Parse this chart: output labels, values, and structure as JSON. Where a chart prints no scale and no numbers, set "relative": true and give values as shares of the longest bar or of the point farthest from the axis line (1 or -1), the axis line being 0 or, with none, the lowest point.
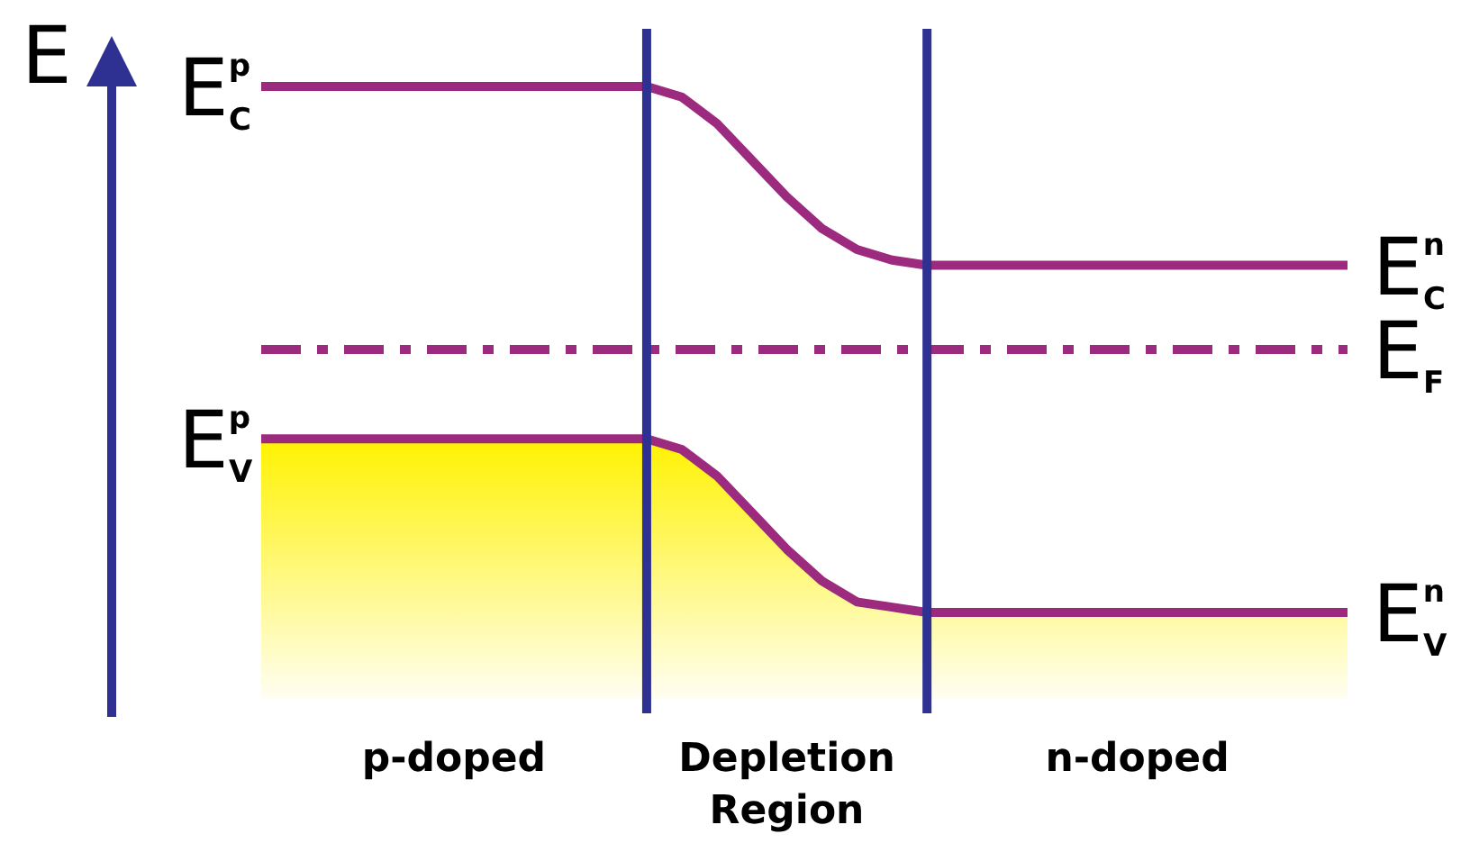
{
  "chart_data": {
    "type": "line",
    "ylabel": "E",
    "relative": true,
    "categories": [
      null,
      null,
      null,
      null,
      null,
      null,
      null,
      null,
      null,
      null,
      null,
      null,
      null,
      null,
      null,
      null,
      null,
      null,
      null,
      null,
      null,
      null,
      null,
      null,
      null,
      null,
      null,
      null,
      null,
      null,
      null,
      null
    ],
    "series": [
      {
        "name": "E$^{n}$$_{C}$",
        "color": "#9c2a7e",
        "values": [
          1,
          1,
          1,
          1,
          1,
          1,
          1,
          1,
          1,
          1,
          1,
          1,
          0.98,
          0.93,
          0.86,
          0.79,
          0.73,
          0.69,
          0.67,
          0.66,
          0.66,
          0.66,
          0.66,
          0.66,
          0.66,
          0.66,
          0.66,
          0.66,
          0.66,
          0.66,
          0.66,
          0.66
        ]
      },
      {
        "name": "E$_{F}$",
        "color": "#9c2a7e",
        "line_style": "dashed",
        "values": [
          0.5,
          0.5,
          0.5,
          0.5,
          0.5,
          0.5,
          0.5,
          0.5,
          0.5,
          0.5,
          0.5,
          0.5,
          0.5,
          0.5,
          0.5,
          0.5,
          0.5,
          0.5,
          0.5,
          0.5,
          0.5,
          0.5,
          0.5,
          0.5,
          0.5,
          0.5,
          0.5,
          0.5,
          0.5,
          0.5,
          0.5,
          0.5
        ]
      },
      {
        "name": "E$^{n}$$_{V}$",
        "type": "area",
        "color": "#9c2a7e",
        "values": [
          0.33,
          0.33,
          0.33,
          0.33,
          0.33,
          0.33,
          0.33,
          0.33,
          0.33,
          0.33,
          0.33,
          0.33,
          0.31,
          0.26,
          0.19,
          0.12,
          0.06,
          0.02,
          0.01,
          0,
          0,
          0,
          0,
          0,
          0,
          0,
          0,
          0,
          0,
          0,
          0,
          0
        ]
      }
    ],
    "annotations": [
      "E$^{p}$$_{C}$",
      "E$^{p}$$_{V}$",
      "p-doped",
      "Depletion Region",
      "n-doped"
    ]
  }
}
